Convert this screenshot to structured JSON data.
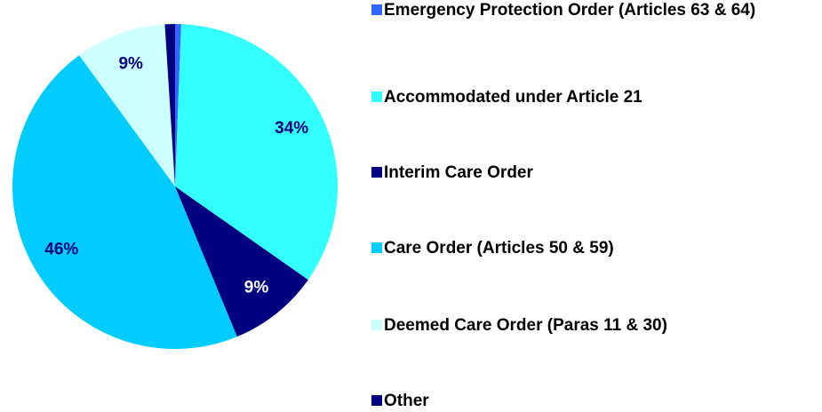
{
  "chart_data": {
    "type": "pie",
    "categories": [
      "Emergency Protection Order (Articles 63 & 64)",
      "Accommodated under Article 21",
      "Interim Care Order",
      "Care Order (Articles 50 & 59)",
      "Deemed Care Order (Paras 11 & 30)",
      "Other"
    ],
    "values": [
      0.6,
      34,
      9,
      46,
      9,
      1
    ],
    "value_labels": [
      null,
      "34%",
      "9%",
      "46%",
      "9%",
      null
    ],
    "colors": [
      "#3366ff",
      "#33ffff",
      "#000080",
      "#00ccff",
      "#ccffff",
      "#000080"
    ],
    "label_colors": [
      null,
      "#000080",
      "#ffffff",
      "#000080",
      "#000080",
      null
    ],
    "legend": "right"
  }
}
